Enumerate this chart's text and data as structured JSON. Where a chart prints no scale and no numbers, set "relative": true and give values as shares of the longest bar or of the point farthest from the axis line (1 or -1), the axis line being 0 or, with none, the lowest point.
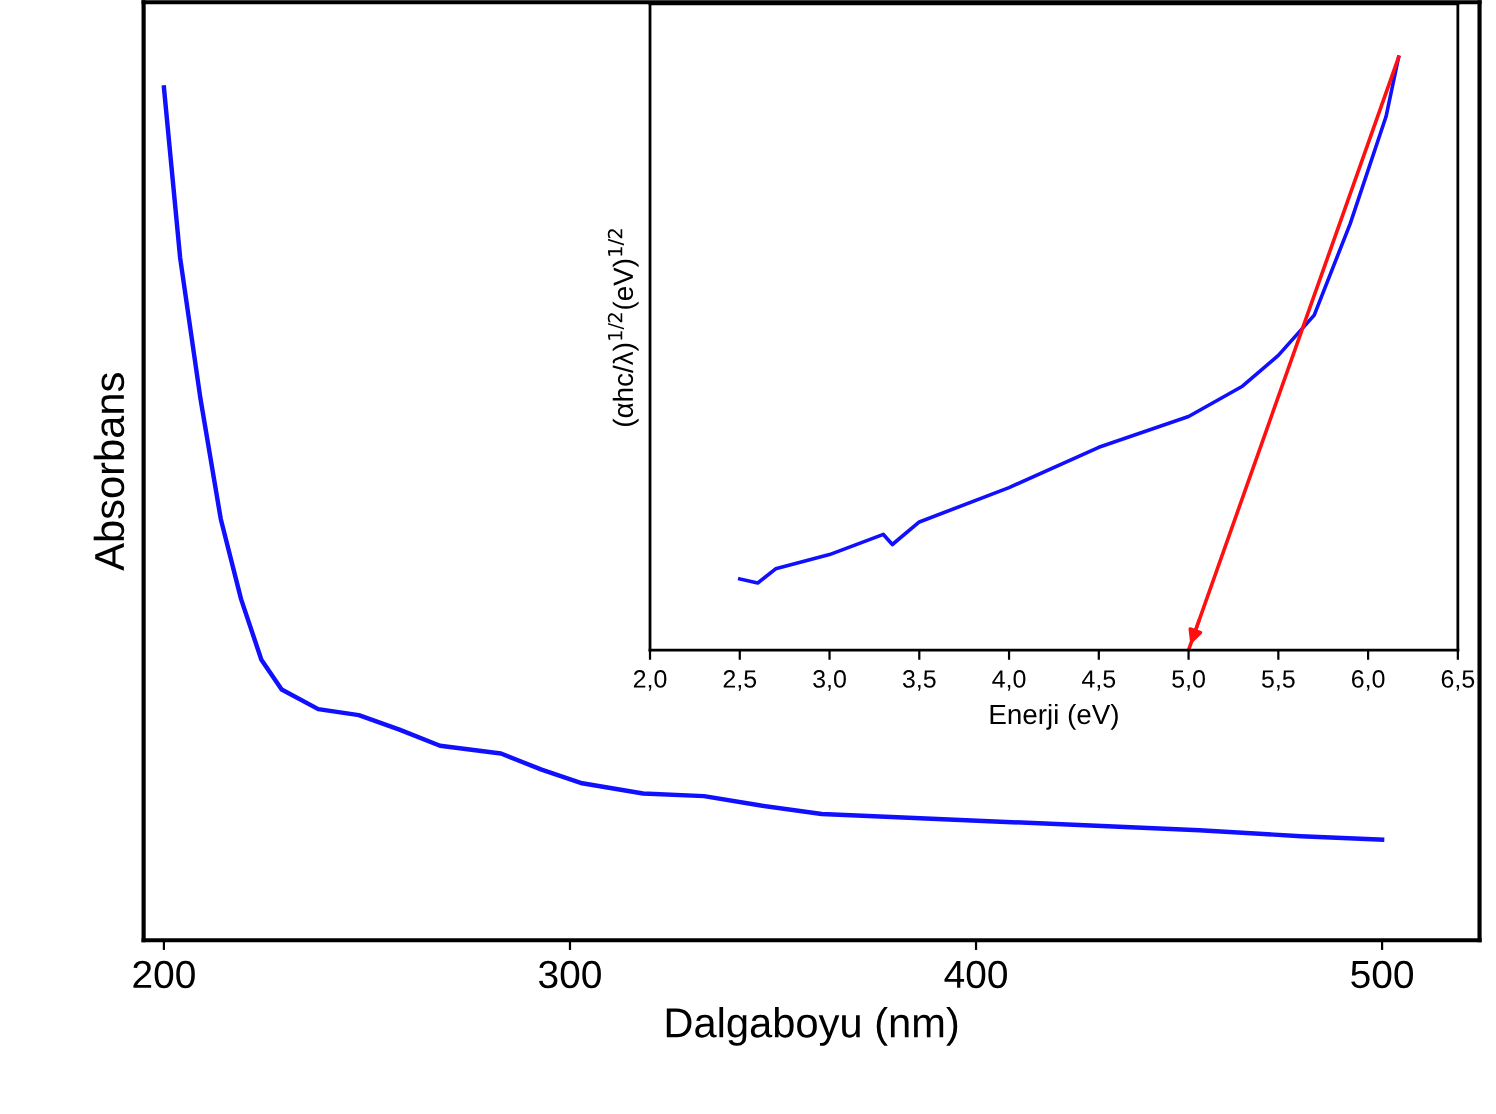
{
  "chart_data": [
    {
      "type": "line",
      "relative": true,
      "xlabel": "Dalgaboyu (nm)",
      "ylabel": "Absorbans",
      "tick_labels": "x",
      "xlim": [
        195,
        524
      ],
      "xticks": [
        200,
        300,
        400,
        500
      ],
      "grid": false,
      "legend": false,
      "series": [
        {
          "color": "#1010ff",
          "x": [
            200,
            204,
            209,
            214,
            219,
            224,
            229,
            238,
            248,
            258,
            268,
            283,
            293,
            303,
            318,
            333,
            347,
            362,
            382,
            406,
            431,
            455,
            480,
            500
          ],
          "values": [
            1.0,
            0.8,
            0.635,
            0.494,
            0.4,
            0.329,
            0.294,
            0.271,
            0.264,
            0.247,
            0.228,
            0.219,
            0.2,
            0.184,
            0.172,
            0.169,
            0.158,
            0.148,
            0.144,
            0.139,
            0.134,
            0.129,
            0.122,
            0.118
          ]
        }
      ]
    },
    {
      "type": "line",
      "relative": true,
      "xlabel": "Enerji (eV)",
      "ylabel": "(αhc/λ)$^{1/2}$(eV)$^{1/2}$",
      "tick_labels": "x",
      "xlim": [
        2.0,
        6.5
      ],
      "xticks": [
        {
          "value": 2.0,
          "label": "2,0"
        },
        {
          "value": 2.5,
          "label": "2,5"
        },
        {
          "value": 3.0,
          "label": "3,0"
        },
        {
          "value": 3.5,
          "label": "3,5"
        },
        {
          "value": 4.0,
          "label": "4,0"
        },
        {
          "value": 4.5,
          "label": "4,5"
        },
        {
          "value": 5.0,
          "label": "5,0"
        },
        {
          "value": 5.5,
          "label": "5,5"
        },
        {
          "value": 6.0,
          "label": "6,0"
        },
        {
          "value": 6.5,
          "label": "6,5"
        }
      ],
      "grid": false,
      "legend": false,
      "series": [
        {
          "color": "#1010ff",
          "x": [
            2.5,
            2.6,
            2.7,
            3.0,
            3.3,
            3.35,
            3.5,
            4.0,
            4.5,
            5.0,
            5.3,
            5.5,
            5.7,
            5.9,
            6.1,
            6.17
          ],
          "values": [
            0.12,
            0.113,
            0.137,
            0.161,
            0.195,
            0.178,
            0.216,
            0.274,
            0.342,
            0.394,
            0.445,
            0.497,
            0.565,
            0.719,
            0.9,
            1.0
          ]
        },
        {
          "color": "#ff1010",
          "x": [
            5.0,
            6.17
          ],
          "values": [
            0.0,
            1.0
          ]
        }
      ]
    }
  ]
}
